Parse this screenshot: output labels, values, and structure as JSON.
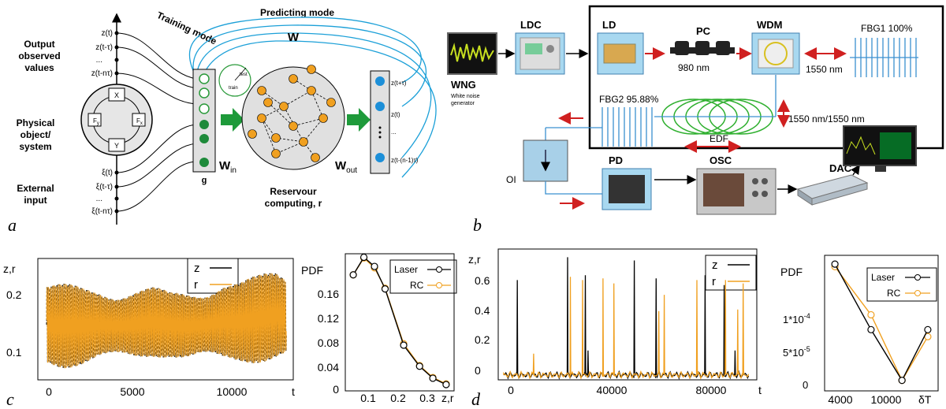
{
  "panel_a": {
    "letter": "a",
    "training_mode": "Training mode",
    "predicting_mode": "Predicting mode",
    "output_observed_values": [
      "Output",
      "observed",
      "values"
    ],
    "physical_object": [
      "Physical",
      "object/",
      "system"
    ],
    "external_input": [
      "External",
      "input"
    ],
    "z_labels": [
      "z(t)",
      "z(t-τ)",
      "...",
      "z(t-nτ)"
    ],
    "xi_labels": [
      "ξ(t)",
      "ξ(t-τ)",
      "...",
      "ξ(t-nτ)"
    ],
    "system_nodes": [
      "X",
      "Y",
      "F",
      "F"
    ],
    "system_subs": [
      "y",
      "x"
    ],
    "g_label": "g",
    "w_label": "W",
    "win_label": "W",
    "win_sub": "in",
    "wout_label": "W",
    "wout_sub": "out",
    "reservoir": [
      "Reservour",
      "computing, r"
    ],
    "out_labels": [
      "z(t+τ)",
      "z(t)",
      "...",
      "z(t-(n-1)τ)"
    ],
    "test_label": "test",
    "train_label": "train"
  },
  "panel_b": {
    "letter": "b",
    "wng": "WNG",
    "wng_sub": [
      "White noise",
      "generator"
    ],
    "ldc": "LDC",
    "ld": "LD",
    "pc": "PC",
    "nm980": "980 nm",
    "wdm": "WDM",
    "nm1550": "1550 nm",
    "fbg1": "FBG1 100%",
    "fbg2": "FBG2 95.88%",
    "nm1550_1550": "1550 nm/1550 nm",
    "edf": "EDF",
    "oi": "OI",
    "pd": "PD",
    "osc": "OSC",
    "dac": "DAC"
  },
  "panel_c": {
    "letter": "c",
    "ts": {
      "ylabel": "z,r",
      "xlabel": "t",
      "legend": [
        "z",
        "r"
      ],
      "yticks": [
        "0.2",
        "0.1"
      ],
      "xticks": [
        "0",
        "5000",
        "10000"
      ]
    },
    "pdf": {
      "ylabel": "PDF",
      "xlabel": "z,r",
      "legend": [
        "Laser",
        "RC"
      ],
      "yticks": [
        "0.16",
        "0.12",
        "0.08",
        "0.04",
        "0"
      ],
      "xticks": [
        "0.1",
        "0.2",
        "0.3"
      ]
    }
  },
  "panel_d": {
    "letter": "d",
    "ts": {
      "ylabel": "z,r",
      "xlabel": "t",
      "legend": [
        "z",
        "r"
      ],
      "yticks": [
        "0.6",
        "0.4",
        "0.2",
        "0"
      ],
      "xticks": [
        "0",
        "40000",
        "80000"
      ]
    },
    "pdf": {
      "ylabel": "PDF",
      "xlabel": "δT",
      "legend": [
        "Laser",
        "RC"
      ],
      "yticks": [
        "1*10",
        "5*10",
        "0"
      ],
      "ytick_exps": [
        "-4",
        "-5"
      ],
      "xticks": [
        "4000",
        "10000"
      ]
    }
  },
  "chart_data": [
    {
      "type": "line",
      "panel": "c-timeseries",
      "ylabel": "z,r",
      "xlabel": "t",
      "xlim": [
        -500,
        14000
      ],
      "ylim": [
        0.03,
        0.25
      ],
      "series": [
        {
          "name": "z",
          "color": "#000000"
        },
        {
          "name": "r",
          "color": "#f0a020"
        }
      ],
      "envelope": {
        "x": [
          0,
          1000,
          2000,
          3000,
          4000,
          5000,
          6000,
          7000,
          8000,
          9000,
          10000,
          11000,
          12000,
          13000,
          13600
        ],
        "ymin": [
          0.05,
          0.05,
          0.055,
          0.06,
          0.06,
          0.06,
          0.07,
          0.07,
          0.06,
          0.06,
          0.055,
          0.06,
          0.06,
          0.06,
          0.06
        ],
        "ymax": [
          0.21,
          0.205,
          0.2,
          0.2,
          0.195,
          0.2,
          0.2,
          0.19,
          0.195,
          0.2,
          0.215,
          0.21,
          0.22,
          0.235,
          0.23
        ]
      }
    },
    {
      "type": "line",
      "panel": "c-pdf",
      "ylabel": "PDF",
      "xlabel": "z,r",
      "xlim": [
        0.03,
        0.44
      ],
      "ylim": [
        -0.005,
        0.19
      ],
      "series": [
        {
          "name": "Laser",
          "color": "#000000",
          "x": [
            0.06,
            0.1,
            0.14,
            0.18,
            0.25,
            0.31,
            0.36,
            0.41
          ],
          "y": [
            0.16,
            0.185,
            0.172,
            0.14,
            0.06,
            0.03,
            0.013,
            0.004
          ]
        },
        {
          "name": "RC",
          "color": "#f0a020",
          "x": [
            0.06,
            0.1,
            0.14,
            0.18,
            0.25,
            0.31,
            0.36,
            0.41
          ],
          "y": [
            0.16,
            0.184,
            0.17,
            0.141,
            0.062,
            0.031,
            0.014,
            0.005
          ]
        }
      ]
    },
    {
      "type": "line",
      "panel": "d-timeseries",
      "ylabel": "z,r",
      "xlabel": "t",
      "xlim": [
        -2000,
        93000
      ],
      "ylim": [
        -0.1,
        0.7
      ],
      "baseline": -0.07,
      "series": [
        {
          "name": "z",
          "color": "#000000",
          "spikes_x": [
            5000,
            23500,
            30000,
            31000,
            48000,
            56000,
            74000,
            81000,
            85000
          ],
          "spikes_y": [
            0.51,
            0.65,
            0.54,
            0.08,
            0.63,
            0.52,
            0.54,
            0.48,
            0.08
          ]
        },
        {
          "name": "r",
          "color": "#f0a020",
          "spikes_x": [
            11000,
            24500,
            29000,
            36500,
            40500,
            57000,
            59000,
            71000,
            81500,
            86000,
            88000
          ],
          "spikes_y": [
            0.06,
            0.53,
            0.51,
            0.52,
            0.49,
            0.32,
            0.42,
            0.51,
            0.51,
            0.33,
            0.49
          ]
        }
      ]
    },
    {
      "type": "line",
      "panel": "d-pdf",
      "ylabel": "PDF",
      "xlabel": "δT",
      "ylim": [
        -1e-05,
        0.000145
      ],
      "series": [
        {
          "name": "Laser",
          "color": "#000000",
          "x": [
            3500,
            7000,
            10000,
            12500
          ],
          "y": [
            0.000135,
            6e-05,
            2e-06,
            6e-05
          ]
        },
        {
          "name": "RC",
          "color": "#f0a020",
          "x": [
            3500,
            7000,
            10000,
            12500
          ],
          "y": [
            0.000132,
            7.7e-05,
            2e-06,
            5.2e-05
          ]
        }
      ]
    }
  ]
}
